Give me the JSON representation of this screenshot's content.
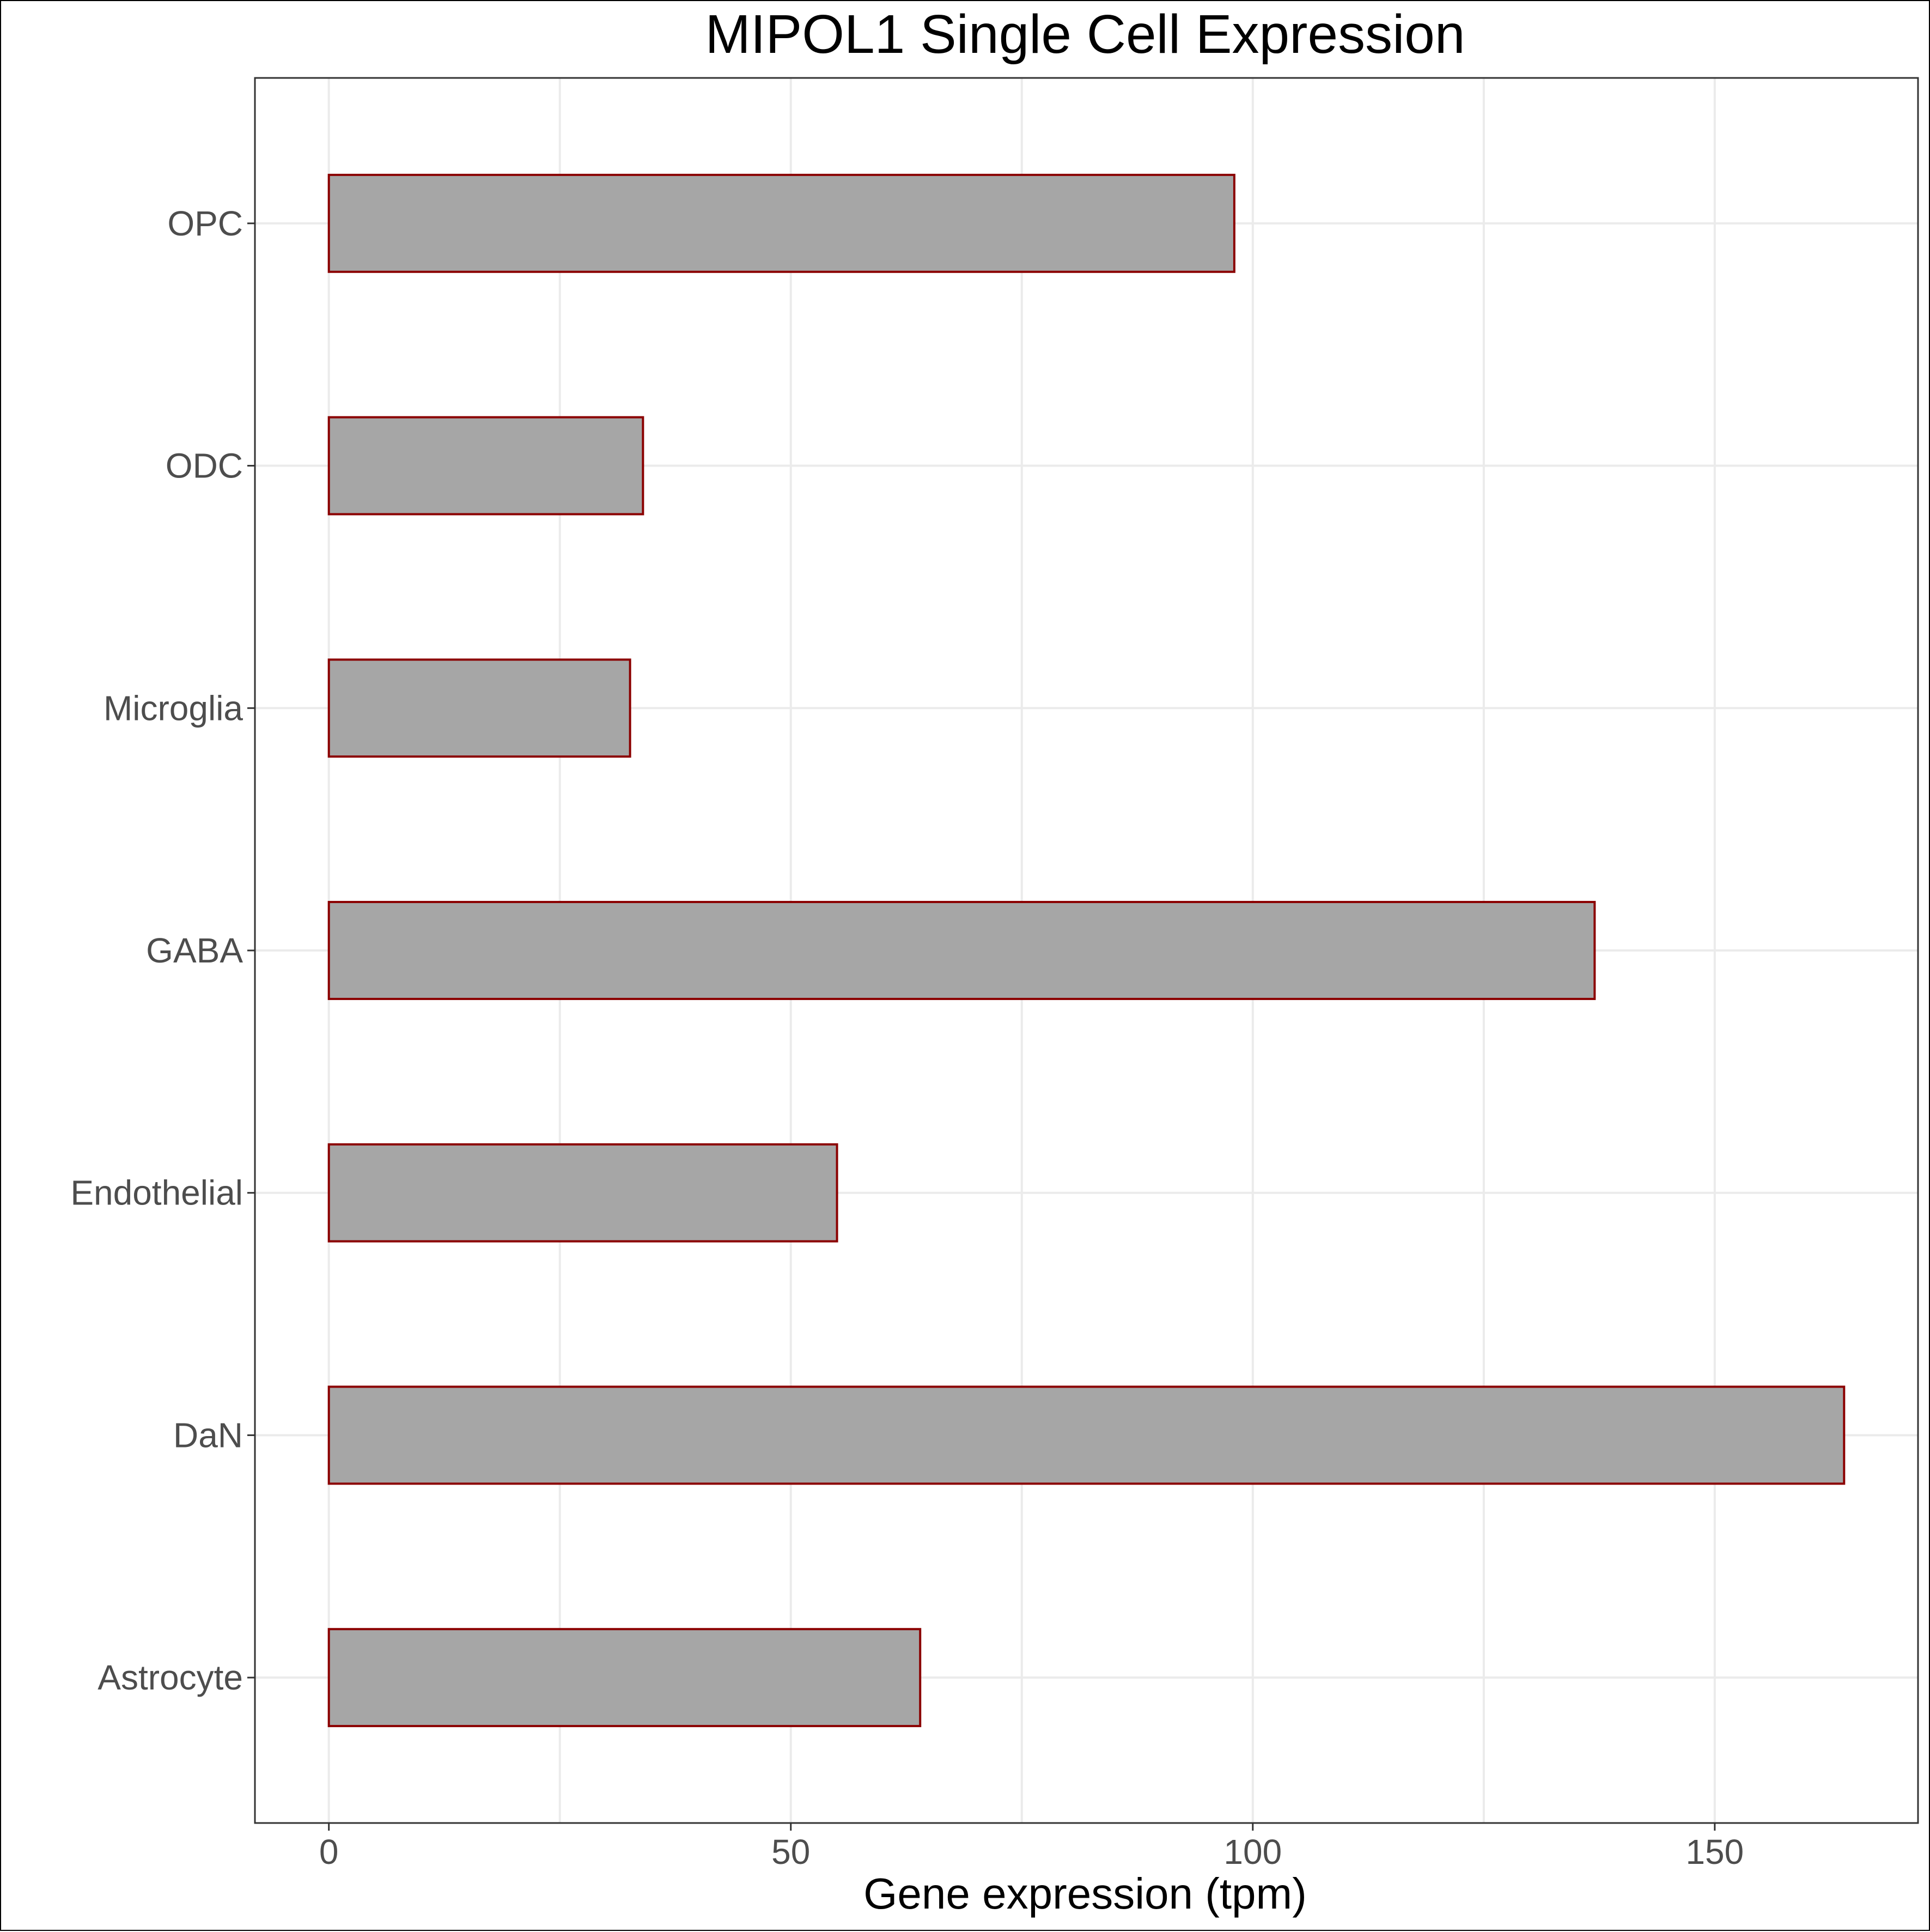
{
  "chart_data": {
    "type": "bar",
    "orientation": "horizontal",
    "title": "MIPOL1 Single Cell Expression",
    "xlabel": "Gene expression (tpm)",
    "ylabel": "",
    "categories": [
      "Astrocyte",
      "DaN",
      "Endothelial",
      "GABA",
      "Microglia",
      "ODC",
      "OPC"
    ],
    "values": [
      64,
      164,
      55,
      137,
      32.6,
      34,
      98
    ],
    "xlim": [
      -8,
      172
    ],
    "xticks": [
      0,
      50,
      100,
      150
    ],
    "grid": true,
    "legend": "none",
    "colors": {
      "bar_fill": "#a6a6a6",
      "bar_outline": "#8b0000"
    }
  }
}
